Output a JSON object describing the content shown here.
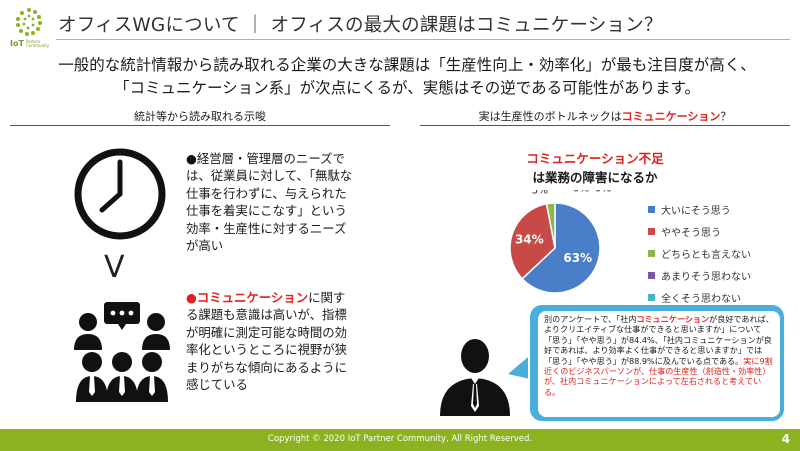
{
  "logo": {
    "text": "IoT",
    "sub": "Partner Community"
  },
  "header": {
    "title": "オフィスWGについて ｜ オフィスの最大の課題はコミュニケーション？"
  },
  "lead": {
    "line1": "一般的な統計情報から読み取れる企業の大きな課題は「生産性向上・効率化」が最も注目度が高く、",
    "line2": "「コミュニケーション系」が次点にくるが、実態はその逆である可能性があります。"
  },
  "left_section": {
    "heading": "統計等から読み取れる示唆",
    "vs_mark": "V",
    "bullet1": {
      "dot": "●",
      "text": "経営層・管理層のニーズでは、従業員に対して、「無駄な仕事を行わずに、与えられた仕事を着実にこなす」という効率・生産性に対するニーズが高い"
    },
    "bullet2": {
      "dot": "●",
      "highlight": "コミュニケーション",
      "text": "に関する課題も意識は高いが、指標が明確に測定可能な時間の効率化というところに視野が狭まりがちな傾向にあるように感じている"
    }
  },
  "right_section": {
    "heading_prefix": "実は生産性のボトルネックは",
    "heading_highlight": "コミュニケーション",
    "heading_suffix": "？"
  },
  "chart_data": {
    "type": "pie",
    "title_line1": "コミュニケーション不足",
    "title_line2": "は業務の障害になるか",
    "categories": [
      "大いにそう思う",
      "ややそう思う",
      "どちらとも言えない",
      "あまりそう思わない",
      "全くそう思わない"
    ],
    "values": [
      63,
      34,
      3,
      0,
      0
    ],
    "labels": [
      "63%",
      "34%",
      "3%",
      "0%",
      "0%"
    ],
    "colors": [
      "#4a7ec8",
      "#c84a47",
      "#8cb84a",
      "#7a5aa8",
      "#4ab4c8"
    ],
    "legend_position": "right"
  },
  "bubble": {
    "p1": "別のアンケートで、「社内",
    "p1_red": "コミュニケーション",
    "p2": "が良好であれば、よりクリエイティブな仕事ができると思いますか」について「思う」「やや思う」が84.4%、「社内コミュニケーションが良好であれば、より効率よく仕事ができると思いますか」では「思う」「やや思う」が88.9%に及んでいる点である。",
    "p3_red": "実に9割近くのビジネスパーソンが、仕事の生産性（創造性・効率性）が、社内コミュニケーションによって左右されると考えている。"
  },
  "footer": {
    "copyright": "Copyright © 2020 IoT Partner Community, All Right Reserved.",
    "page": "4"
  },
  "colors": {
    "accent_green": "#8cb21f",
    "accent_red": "#e0201c",
    "bubble_blue": "#4aaedc"
  }
}
